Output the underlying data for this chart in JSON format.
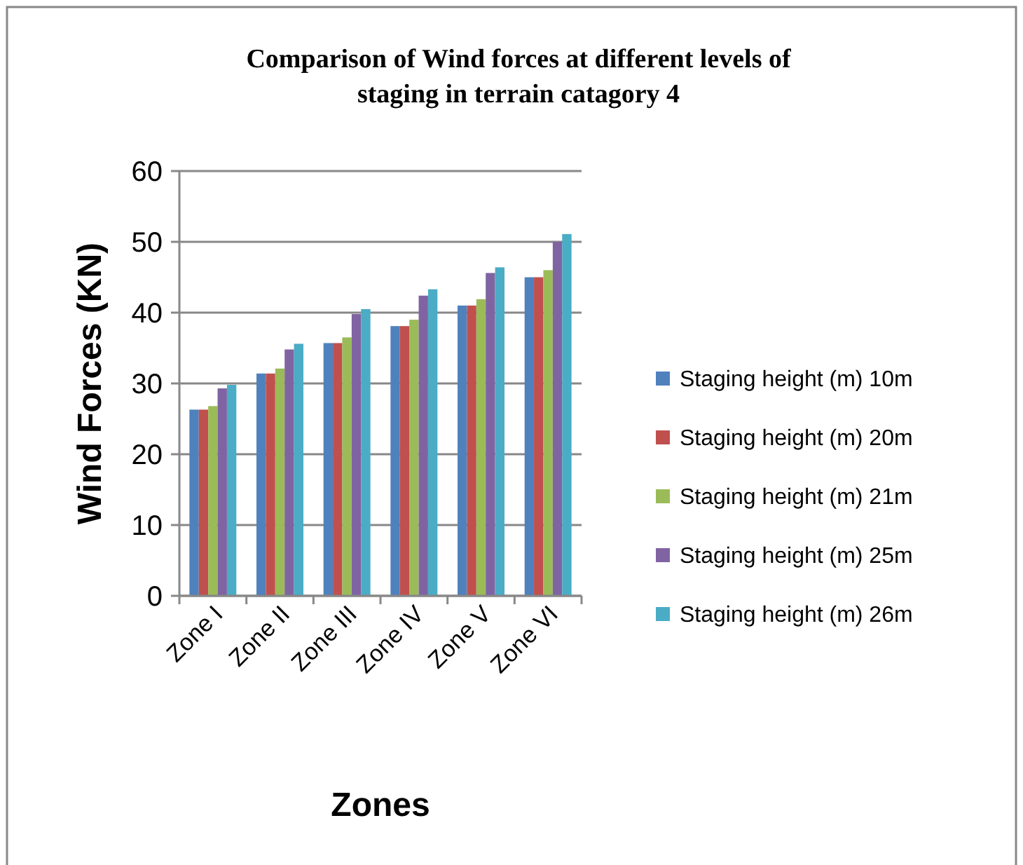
{
  "chart_data": {
    "type": "bar",
    "title": "Comparison of  Wind forces at different levels of staging in terrain catagory 4",
    "xlabel": "Zones",
    "ylabel": "Wind Forces (KN)",
    "categories": [
      "Zone I",
      "Zone II",
      "Zone III",
      "Zone IV",
      "Zone V",
      "Zone VI"
    ],
    "series": [
      {
        "name": "Staging height (m) 10m",
        "color": "#4f81bd",
        "values": [
          26.3,
          31.4,
          35.7,
          38.1,
          41.0,
          45.0
        ]
      },
      {
        "name": "Staging height (m) 20m",
        "color": "#c0504d",
        "values": [
          26.3,
          31.4,
          35.7,
          38.1,
          41.0,
          45.0
        ]
      },
      {
        "name": "Staging height (m) 21m",
        "color": "#9bbb59",
        "values": [
          26.8,
          32.1,
          36.5,
          39.0,
          41.9,
          46.0
        ]
      },
      {
        "name": "Staging height (m) 25m",
        "color": "#8064a2",
        "values": [
          29.3,
          34.8,
          39.8,
          42.4,
          45.6,
          50.0
        ]
      },
      {
        "name": "Staging height (m) 26m",
        "color": "#4bacc6",
        "values": [
          29.8,
          35.6,
          40.5,
          43.3,
          46.4,
          51.1
        ]
      }
    ],
    "ylim": [
      0,
      60
    ],
    "yticks": [
      0,
      10,
      20,
      30,
      40,
      50,
      60
    ],
    "grid": "y",
    "legend": "right"
  }
}
